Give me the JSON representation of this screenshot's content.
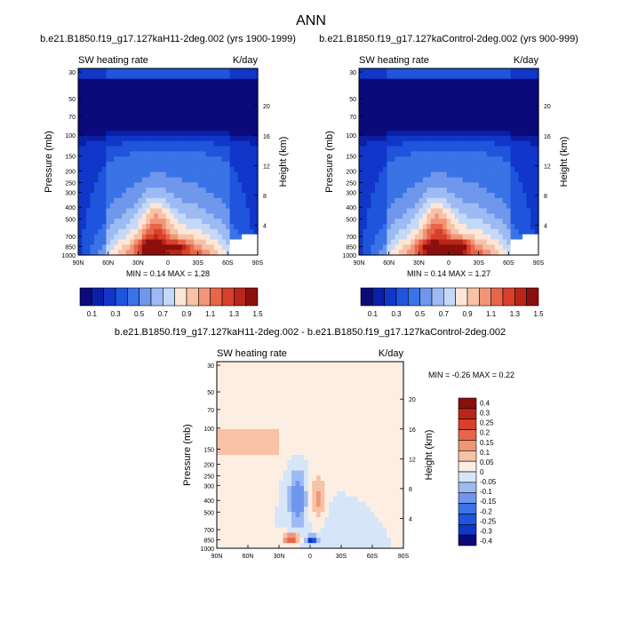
{
  "title": "ANN",
  "colors": {
    "cool": [
      "#0a0a7a",
      "#0b1fa6",
      "#1037c9",
      "#1e55dc",
      "#3a73e6",
      "#6f97ec",
      "#9dbbf2",
      "#c5d9f7"
    ],
    "warm": [
      "#fde6d8",
      "#f7c2a6",
      "#f19577",
      "#e8654a",
      "#d8402b",
      "#b82619",
      "#8a0f0d"
    ],
    "neutral": "#f7f7f7",
    "zero": "#fdeee3"
  },
  "chart_data": [
    {
      "id": "panel1",
      "type": "heatmap",
      "title": "b.e21.B1850.f19_g17.127kaH11-2deg.002 (yrs 1900-1999)",
      "left_label": "SW heating rate",
      "right_label": "K/day",
      "xlabel": "",
      "ylabel": "Pressure (mb)",
      "ylabel_right": "Height (km)",
      "x_ticks": [
        "90N",
        "60N",
        "30N",
        "0",
        "30S",
        "60S",
        "90S"
      ],
      "y_ticks": [
        30,
        50,
        70,
        100,
        150,
        200,
        250,
        300,
        400,
        500,
        700,
        850,
        1000
      ],
      "y_ticks_right": [
        20,
        16,
        12,
        8,
        4
      ],
      "stats": {
        "min_label": "MIN =",
        "min": "0.14",
        "max_label": "MAX =",
        "max": "1.28"
      },
      "peak": {
        "lat": 17,
        "p": 850,
        "value": 1.28
      }
    },
    {
      "id": "panel2",
      "type": "heatmap",
      "title": "b.e21.B1850.f19_g17.127kaControl-2deg.002 (yrs 900-999)",
      "left_label": "SW heating rate",
      "right_label": "K/day",
      "xlabel": "",
      "ylabel": "Pressure (mb)",
      "ylabel_right": "Height (km)",
      "x_ticks": [
        "90N",
        "60N",
        "30N",
        "0",
        "30S",
        "60S",
        "90S"
      ],
      "y_ticks": [
        30,
        50,
        70,
        100,
        150,
        200,
        250,
        300,
        400,
        500,
        700,
        850,
        1000
      ],
      "y_ticks_right": [
        20,
        16,
        12,
        8,
        4
      ],
      "stats": {
        "min_label": "MIN =",
        "min": "0.14",
        "max_label": "MAX =",
        "max": "1.27"
      },
      "peak": {
        "lat": -10,
        "p": 850,
        "value": 1.27
      }
    },
    {
      "id": "panel3",
      "type": "heatmap",
      "title": "b.e21.B1850.f19_g17.127kaH11-2deg.002 - b.e21.B1850.f19_g17.127kaControl-2deg.002",
      "left_label": "SW heating rate",
      "right_label": "K/day",
      "xlabel": "",
      "ylabel": "Pressure (mb)",
      "ylabel_right": "Height (km)",
      "x_ticks": [
        "90N",
        "60N",
        "30N",
        "0",
        "30S",
        "60S",
        "90S"
      ],
      "y_ticks": [
        30,
        50,
        70,
        100,
        150,
        200,
        250,
        300,
        400,
        500,
        700,
        850,
        1000
      ],
      "y_ticks_right": [
        20,
        16,
        12,
        8,
        4
      ],
      "stats": {
        "min_label": "MIN =",
        "min": "-0.26",
        "max_label": "MAX =",
        "max": "0.22"
      },
      "extremes": [
        {
          "lat": 18,
          "p": 830,
          "value": 0.22
        },
        {
          "lat": -2,
          "p": 850,
          "value": -0.26
        }
      ]
    }
  ],
  "colorbar_abs": {
    "orientation": "horizontal",
    "labels": [
      "0.1",
      "0.3",
      "0.5",
      "0.7",
      "0.9",
      "1.1",
      "1.3",
      "1.5"
    ],
    "levels": [
      0.1,
      0.2,
      0.3,
      0.4,
      0.5,
      0.6,
      0.7,
      0.8,
      0.9,
      1.0,
      1.1,
      1.2,
      1.3,
      1.4,
      1.5
    ]
  },
  "colorbar_diff": {
    "orientation": "vertical",
    "labels": [
      "0.4",
      "0.3",
      "0.25",
      "0.2",
      "0.15",
      "0.1",
      "0.05",
      "0",
      "-0.05",
      "-0.1",
      "-0.15",
      "-0.2",
      "-0.25",
      "-0.3",
      "-0.4"
    ]
  }
}
